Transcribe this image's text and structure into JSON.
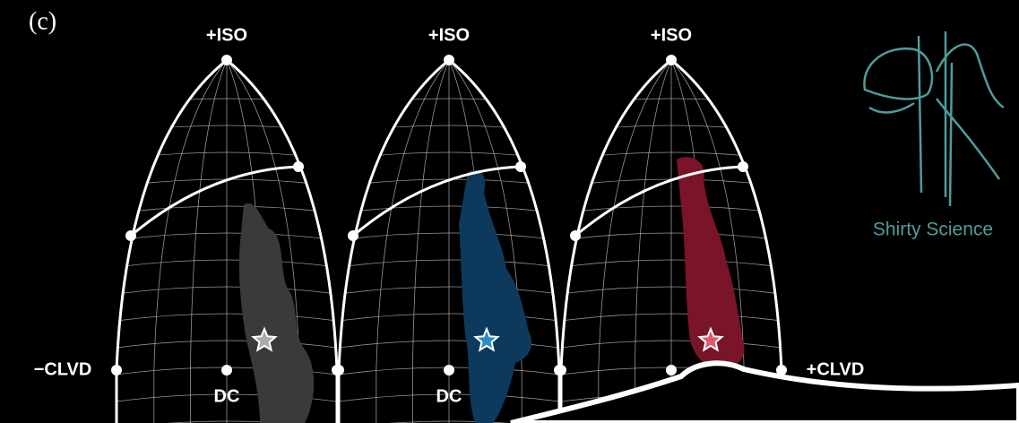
{
  "panel_label": "(c)",
  "lunes": [
    {
      "top_label": "+ISO",
      "bottom_label": "DC"
    },
    {
      "top_label": "+ISO",
      "bottom_label": "DC"
    },
    {
      "top_label": "+ISO"
    }
  ],
  "left_label": "−CLVD",
  "right_label": "+CLVD",
  "watermark": "Shirty Science"
}
